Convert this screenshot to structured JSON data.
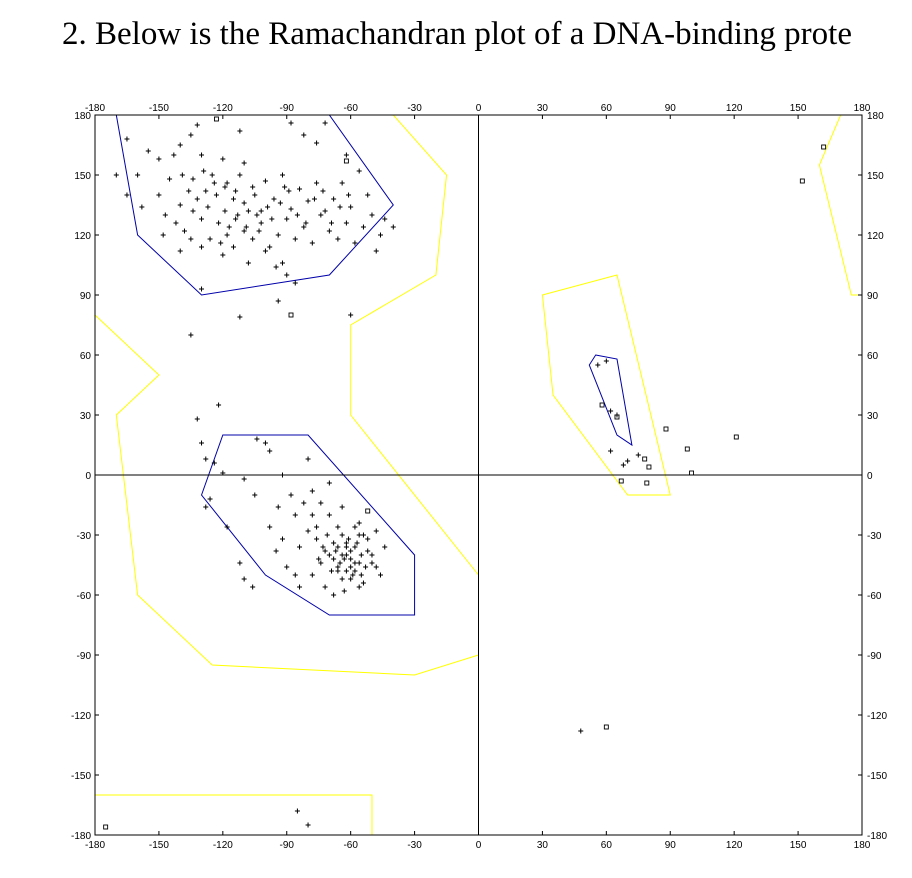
{
  "title": "2. Below is the Ramachandran plot of a DNA-binding prote",
  "chart_data": {
    "type": "scatter",
    "title": "",
    "xlabel": "",
    "ylabel": "",
    "xlim": [
      -180,
      180
    ],
    "ylim": [
      -180,
      180
    ],
    "grid": false,
    "legend": "none",
    "xticks": [
      "-180",
      "-150",
      "-120",
      "-90",
      "-60",
      "-30",
      "0",
      "30",
      "60",
      "90",
      "120",
      "150",
      "180"
    ],
    "yticks": [
      "180",
      "150",
      "120",
      "90",
      "60",
      "30",
      "0",
      "-30",
      "-60",
      "-90",
      "-120",
      "-150",
      "-180"
    ],
    "colors": {
      "allowed": "#ffff00",
      "core": "#0000aa",
      "points": "#000000",
      "axes": "#000000"
    },
    "regions": [
      {
        "kind": "allowed",
        "points": [
          [
            -180,
            180
          ],
          [
            -180,
            80
          ],
          [
            -150,
            50
          ],
          [
            -170,
            30
          ],
          [
            -160,
            -60
          ],
          [
            -125,
            -95
          ],
          [
            -30,
            -100
          ],
          [
            0,
            -90
          ],
          [
            0,
            -50
          ],
          [
            -60,
            30
          ],
          [
            -60,
            75
          ],
          [
            -20,
            100
          ],
          [
            -15,
            150
          ],
          [
            -40,
            180
          ]
        ]
      },
      {
        "kind": "allowed",
        "points": [
          [
            30,
            90
          ],
          [
            65,
            100
          ],
          [
            90,
            -10
          ],
          [
            70,
            -10
          ],
          [
            35,
            40
          ]
        ]
      },
      {
        "kind": "allowed",
        "points": [
          [
            170,
            180
          ],
          [
            180,
            180
          ],
          [
            180,
            90
          ],
          [
            175,
            90
          ],
          [
            160,
            155
          ]
        ]
      },
      {
        "kind": "allowed",
        "points": [
          [
            -180,
            -160
          ],
          [
            -50,
            -160
          ],
          [
            -50,
            -180
          ],
          [
            -180,
            -180
          ]
        ]
      },
      {
        "kind": "core",
        "points": [
          [
            -170,
            180
          ],
          [
            -70,
            180
          ],
          [
            -40,
            135
          ],
          [
            -70,
            100
          ],
          [
            -130,
            90
          ],
          [
            -160,
            120
          ]
        ]
      },
      {
        "kind": "core",
        "points": [
          [
            -120,
            20
          ],
          [
            -80,
            20
          ],
          [
            -30,
            -40
          ],
          [
            -30,
            -70
          ],
          [
            -70,
            -70
          ],
          [
            -100,
            -50
          ],
          [
            -130,
            -10
          ]
        ]
      },
      {
        "kind": "core",
        "points": [
          [
            55,
            60
          ],
          [
            65,
            58
          ],
          [
            72,
            15
          ],
          [
            65,
            20
          ],
          [
            52,
            55
          ]
        ]
      }
    ],
    "series": [
      {
        "marker": "plus",
        "points": [
          [
            -165,
            168
          ],
          [
            -160,
            150
          ],
          [
            -155,
            162
          ],
          [
            -150,
            158
          ],
          [
            -145,
            148
          ],
          [
            -140,
            165
          ],
          [
            -135,
            170
          ],
          [
            -130,
            160
          ],
          [
            -128,
            142
          ],
          [
            -125,
            150
          ],
          [
            -120,
            158
          ],
          [
            -118,
            146
          ],
          [
            -115,
            138
          ],
          [
            -112,
            150
          ],
          [
            -110,
            156
          ],
          [
            -108,
            132
          ],
          [
            -105,
            140
          ],
          [
            -100,
            147
          ],
          [
            -96,
            138
          ],
          [
            -92,
            150
          ],
          [
            -88,
            133
          ],
          [
            -84,
            143
          ],
          [
            -80,
            137
          ],
          [
            -76,
            146
          ],
          [
            -72,
            132
          ],
          [
            -68,
            138
          ],
          [
            -64,
            146
          ],
          [
            -60,
            134
          ],
          [
            -56,
            152
          ],
          [
            -52,
            140
          ],
          [
            -150,
            140
          ],
          [
            -147,
            130
          ],
          [
            -142,
            126
          ],
          [
            -138,
            122
          ],
          [
            -134,
            132
          ],
          [
            -130,
            128
          ],
          [
            -126,
            118
          ],
          [
            -122,
            126
          ],
          [
            -118,
            120
          ],
          [
            -114,
            128
          ],
          [
            -110,
            122
          ],
          [
            -106,
            118
          ],
          [
            -102,
            126
          ],
          [
            -98,
            114
          ],
          [
            -94,
            120
          ],
          [
            -90,
            128
          ],
          [
            -86,
            118
          ],
          [
            -82,
            124
          ],
          [
            -78,
            116
          ],
          [
            -74,
            130
          ],
          [
            -70,
            122
          ],
          [
            -66,
            118
          ],
          [
            -62,
            126
          ],
          [
            -58,
            116
          ],
          [
            -54,
            124
          ],
          [
            -50,
            130
          ],
          [
            -46,
            120
          ],
          [
            -44,
            128
          ],
          [
            -48,
            112
          ],
          [
            -40,
            124
          ],
          [
            -140,
            112
          ],
          [
            -135,
            118
          ],
          [
            -130,
            114
          ],
          [
            -120,
            110
          ],
          [
            -115,
            114
          ],
          [
            -108,
            106
          ],
          [
            -100,
            112
          ],
          [
            -95,
            104
          ],
          [
            -90,
            100
          ],
          [
            -86,
            96
          ],
          [
            -140,
            135
          ],
          [
            -136,
            142
          ],
          [
            -132,
            138
          ],
          [
            -127,
            134
          ],
          [
            -123,
            140
          ],
          [
            -119,
            132
          ],
          [
            -114,
            142
          ],
          [
            -110,
            136
          ],
          [
            -106,
            144
          ],
          [
            -102,
            132
          ],
          [
            -97,
            128
          ],
          [
            -93,
            136
          ],
          [
            -89,
            142
          ],
          [
            -85,
            130
          ],
          [
            -81,
            126
          ],
          [
            -77,
            138
          ],
          [
            -73,
            142
          ],
          [
            -69,
            126
          ],
          [
            -65,
            134
          ],
          [
            -61,
            140
          ],
          [
            -148,
            120
          ],
          [
            -143,
            160
          ],
          [
            -139,
            150
          ],
          [
            -134,
            148
          ],
          [
            -129,
            152
          ],
          [
            -124,
            146
          ],
          [
            -119,
            144
          ],
          [
            -113,
            130
          ],
          [
            -109,
            124
          ],
          [
            -104,
            130
          ],
          [
            -88,
            176
          ],
          [
            -82,
            170
          ],
          [
            -76,
            166
          ],
          [
            -72,
            176
          ],
          [
            -62,
            160
          ],
          [
            -112,
            172
          ],
          [
            -132,
            175
          ],
          [
            -165,
            140
          ],
          [
            -158,
            134
          ],
          [
            -170,
            150
          ],
          [
            -130,
            93
          ],
          [
            -112,
            79
          ],
          [
            -94,
            87
          ],
          [
            -60,
            80
          ],
          [
            -92,
            106
          ],
          [
            -121,
            116
          ],
          [
            -117,
            124
          ],
          [
            -103,
            122
          ],
          [
            -99,
            134
          ],
          [
            -91,
            144
          ],
          [
            -135,
            70
          ],
          [
            -122,
            35
          ],
          [
            -132,
            28
          ],
          [
            -130,
            16
          ],
          [
            -128,
            8
          ],
          [
            -124,
            6
          ],
          [
            -120,
            1
          ],
          [
            -104,
            18
          ],
          [
            -98,
            12
          ],
          [
            -100,
            16
          ],
          [
            -110,
            -2
          ],
          [
            -105,
            -10
          ],
          [
            -92,
            0
          ],
          [
            -80,
            8
          ],
          [
            -126,
            -12
          ],
          [
            -128,
            -16
          ],
          [
            -118,
            -26
          ],
          [
            -112,
            -44
          ],
          [
            -110,
            -52
          ],
          [
            -106,
            -56
          ],
          [
            -98,
            -26
          ],
          [
            -95,
            -38
          ],
          [
            -90,
            -46
          ],
          [
            -86,
            -50
          ],
          [
            -84,
            -36
          ],
          [
            -80,
            -28
          ],
          [
            -78,
            -20
          ],
          [
            -76,
            -32
          ],
          [
            -74,
            -44
          ],
          [
            -72,
            -56
          ],
          [
            -70,
            -40
          ],
          [
            -68,
            -34
          ],
          [
            -66,
            -46
          ],
          [
            -64,
            -52
          ],
          [
            -62,
            -36
          ],
          [
            -60,
            -42
          ],
          [
            -58,
            -48
          ],
          [
            -56,
            -30
          ],
          [
            -54,
            -54
          ],
          [
            -52,
            -38
          ],
          [
            -50,
            -44
          ],
          [
            -48,
            -28
          ],
          [
            -46,
            -50
          ],
          [
            -44,
            -36
          ],
          [
            -66,
            -26
          ],
          [
            -70,
            -20
          ],
          [
            -74,
            -14
          ],
          [
            -78,
            -8
          ],
          [
            -82,
            -14
          ],
          [
            -86,
            -20
          ],
          [
            -92,
            -32
          ],
          [
            -88,
            -10
          ],
          [
            -94,
            -16
          ],
          [
            -84,
            -56
          ],
          [
            -78,
            -50
          ],
          [
            -68,
            -60
          ],
          [
            -64,
            -30
          ],
          [
            -62,
            -48
          ],
          [
            -60,
            -38
          ],
          [
            -58,
            -44
          ],
          [
            -57,
            -34
          ],
          [
            -55,
            -40
          ],
          [
            -53,
            -46
          ],
          [
            -63,
            -42
          ],
          [
            -61,
            -32
          ],
          [
            -59,
            -50
          ],
          [
            -67,
            -38
          ],
          [
            -65,
            -44
          ],
          [
            -69,
            -48
          ],
          [
            -71,
            -30
          ],
          [
            -55,
            -50
          ],
          [
            -63,
            -58
          ],
          [
            -73,
            -36
          ],
          [
            -52,
            -32
          ],
          [
            -75,
            -42
          ],
          [
            -56,
            -56
          ],
          [
            -62,
            -40
          ],
          [
            -66,
            -36
          ],
          [
            -58,
            -36
          ],
          [
            -60,
            -46
          ],
          [
            -70,
            -4
          ],
          [
            -64,
            -16
          ],
          [
            -56,
            -24
          ],
          [
            -54,
            -30
          ],
          [
            -58,
            -26
          ],
          [
            -76,
            -26
          ],
          [
            -72,
            -38
          ],
          [
            -68,
            -42
          ],
          [
            -50,
            -40
          ],
          [
            -48,
            -46
          ],
          [
            -64,
            -40
          ],
          [
            -66,
            -48
          ],
          [
            -60,
            -52
          ],
          [
            -62,
            -34
          ],
          [
            -56,
            -44
          ],
          [
            56,
            55
          ],
          [
            60,
            57
          ],
          [
            65,
            30
          ],
          [
            62,
            32
          ],
          [
            70,
            7
          ],
          [
            75,
            10
          ],
          [
            68,
            5
          ],
          [
            62,
            12
          ],
          [
            -85,
            -168
          ],
          [
            -80,
            -175
          ],
          [
            48,
            -128
          ]
        ]
      },
      {
        "marker": "square",
        "points": [
          [
            -175,
            -176
          ],
          [
            -123,
            178
          ],
          [
            -88,
            80
          ],
          [
            -62,
            157
          ],
          [
            -52,
            -18
          ],
          [
            58,
            35
          ],
          [
            65,
            29
          ],
          [
            67,
            -3
          ],
          [
            78,
            8
          ],
          [
            80,
            4
          ],
          [
            79,
            -4
          ],
          [
            88,
            23
          ],
          [
            98,
            13
          ],
          [
            100,
            1
          ],
          [
            60,
            -126
          ],
          [
            121,
            19
          ],
          [
            152,
            147
          ],
          [
            162,
            164
          ]
        ]
      }
    ]
  }
}
